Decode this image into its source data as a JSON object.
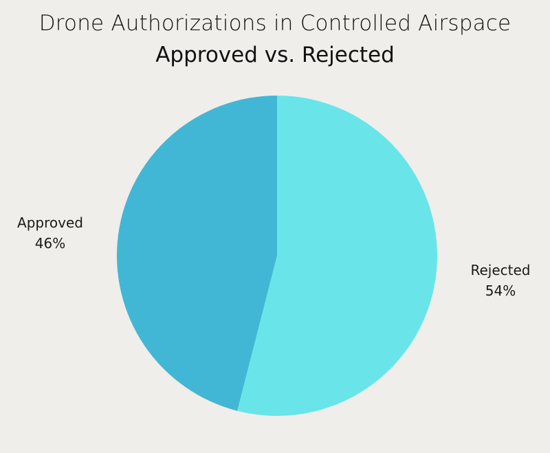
{
  "chart_data": {
    "type": "pie",
    "title": "Drone Authorizations in Controlled Airspace",
    "subtitle": "Approved vs. Rejected",
    "categories": [
      "Rejected",
      "Approved"
    ],
    "values": [
      54,
      46
    ],
    "colors": [
      "#69e5e9",
      "#42b7d5"
    ],
    "start_angle": "12 o'clock, clockwise",
    "labels": [
      {
        "name": "Rejected",
        "pct": "54%"
      },
      {
        "name": "Approved",
        "pct": "46%"
      }
    ],
    "background": "#efeeea"
  }
}
